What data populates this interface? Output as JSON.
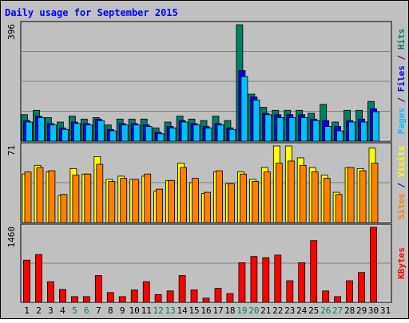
{
  "chart_data": {
    "type": "bar",
    "title": "Daily usage for September 2015",
    "categories": [
      "1",
      "2",
      "3",
      "4",
      "5",
      "6",
      "7",
      "8",
      "9",
      "10",
      "11",
      "12",
      "13",
      "14",
      "15",
      "16",
      "17",
      "18",
      "19",
      "20",
      "21",
      "22",
      "23",
      "24",
      "25",
      "26",
      "27",
      "28",
      "29",
      "30",
      "31"
    ],
    "weekend_days": [
      5,
      6,
      12,
      13,
      19,
      20,
      26,
      27
    ],
    "panels": [
      {
        "id": "hits-files-pages",
        "ymax": 396,
        "ymax_label": "396",
        "axis_label_parts": [
          {
            "text": "Pages",
            "color": "#00c0ff"
          },
          {
            "text": " / ",
            "color": "#000080"
          },
          {
            "text": "Files",
            "color": "#0000ff"
          },
          {
            "text": " / ",
            "color": "#000080"
          },
          {
            "text": "Hits",
            "color": "#008060"
          }
        ],
        "series": [
          {
            "name": "Hits",
            "color": "#008060",
            "values": [
              90,
              105,
              80,
              65,
              85,
              75,
              80,
              55,
              75,
              75,
              75,
              45,
              65,
              85,
              75,
              70,
              85,
              70,
              396,
              160,
              115,
              105,
              105,
              105,
              95,
              125,
              65,
              105,
              105,
              135,
              0
            ]
          },
          {
            "name": "Files",
            "color": "#0000ff",
            "values": [
              70,
              85,
              60,
              45,
              65,
              60,
              75,
              40,
              60,
              60,
              55,
              30,
              50,
              70,
              60,
              50,
              60,
              45,
              240,
              150,
              95,
              90,
              90,
              90,
              75,
              70,
              50,
              70,
              75,
              110,
              0
            ]
          },
          {
            "name": "Pages",
            "color": "#00c0ff",
            "values": [
              65,
              80,
              55,
              40,
              60,
              55,
              70,
              35,
              55,
              55,
              50,
              25,
              45,
              65,
              55,
              45,
              55,
              40,
              220,
              140,
              90,
              80,
              80,
              80,
              70,
              50,
              35,
              65,
              65,
              100,
              0
            ]
          }
        ]
      },
      {
        "id": "visits-sites",
        "ymax": 71,
        "ymax_label": "71",
        "axis_label_parts": [
          {
            "text": "Sites",
            "color": "#ff8000"
          },
          {
            "text": " / ",
            "color": "#000080"
          },
          {
            "text": "Visits",
            "color": "#ffff00"
          }
        ],
        "series": [
          {
            "name": "Visits",
            "color": "#ffff00",
            "values": [
              45,
              53,
              47,
              25,
              50,
              45,
              61,
              40,
              43,
              40,
              43,
              29,
              39,
              55,
              37,
              27,
              47,
              36,
              47,
              40,
              51,
              71,
              71,
              60,
              51,
              44,
              28,
              51,
              50,
              69,
              0
            ]
          },
          {
            "name": "Sites",
            "color": "#ff8000",
            "values": [
              47,
              51,
              48,
              26,
              44,
              45,
              54,
              38,
              41,
              40,
              45,
              31,
              39,
              51,
              41,
              28,
              48,
              36,
              45,
              38,
              47,
              55,
              57,
              53,
              47,
              41,
              26,
              51,
              48,
              55,
              0
            ]
          }
        ]
      },
      {
        "id": "kbytes",
        "ymax": 1460,
        "ymax_label": "1460",
        "axis_label_parts": [
          {
            "text": "KBytes",
            "color": "#ff0000"
          }
        ],
        "series": [
          {
            "name": "KBytes",
            "color": "#ff0000",
            "values": [
              820,
              930,
              400,
              250,
              110,
              110,
              520,
              190,
              110,
              240,
              400,
              150,
              220,
              520,
              240,
              80,
              270,
              170,
              770,
              890,
              870,
              920,
              420,
              770,
              1200,
              220,
              110,
              420,
              580,
              1460,
              0
            ]
          }
        ]
      }
    ]
  }
}
